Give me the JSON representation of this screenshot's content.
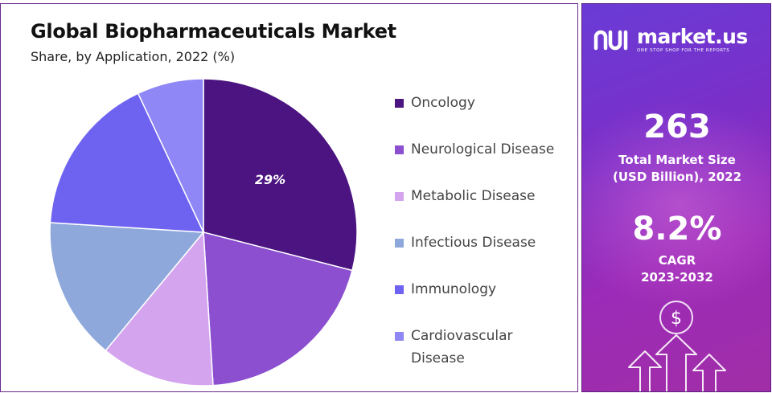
{
  "header": {
    "title": "Global Biopharmaceuticals Market",
    "subtitle": "Share, by Application, 2022 (%)"
  },
  "chart_data": {
    "type": "pie",
    "title": "Global Biopharmaceuticals Market",
    "subtitle": "Share, by Application, 2022 (%)",
    "categories": [
      "Oncology",
      "Neurological Disease",
      "Metabolic Disease",
      "Infectious Disease",
      "Immunology",
      "Cardiovascular Disease"
    ],
    "values": [
      29,
      20,
      12,
      15,
      17,
      7
    ],
    "data_labels": [
      "29%",
      "",
      "",
      "",
      "",
      ""
    ],
    "colors": [
      "#4b1480",
      "#8b4fd0",
      "#d4a5ee",
      "#8ea8dc",
      "#6e62f0",
      "#8f87f5"
    ],
    "start_angle_deg": 0,
    "direction": "clockwise",
    "legend_position": "right"
  },
  "legend": {
    "items": [
      {
        "label": "Oncology",
        "color": "#4b1480"
      },
      {
        "label": "Neurological Disease",
        "color": "#8b4fd0"
      },
      {
        "label": "Metabolic Disease",
        "color": "#d4a5ee"
      },
      {
        "label": "Infectious Disease",
        "color": "#8ea8dc"
      },
      {
        "label": "Immunology",
        "color": "#6e62f0"
      },
      {
        "label": "Cardiovascular Disease",
        "color": "#8f87f5"
      }
    ]
  },
  "sidebar": {
    "brand_name": "market.us",
    "brand_tagline": "ONE STOP SHOP FOR THE REPORTS",
    "logo_icon": "market-us-logo-icon",
    "market_size_value": "263",
    "market_size_label_line1": "Total Market Size",
    "market_size_label_line2": "(USD Billion), 2022",
    "cagr_value": "8.2%",
    "cagr_label_line1": "CAGR",
    "cagr_label_line2": "2023-2032",
    "decor_icon": "dollar-growth-arrows-icon",
    "decor_symbol": "$",
    "background_colors": [
      "#6a3bd6",
      "#9b2bb8",
      "#a12ea6"
    ]
  }
}
